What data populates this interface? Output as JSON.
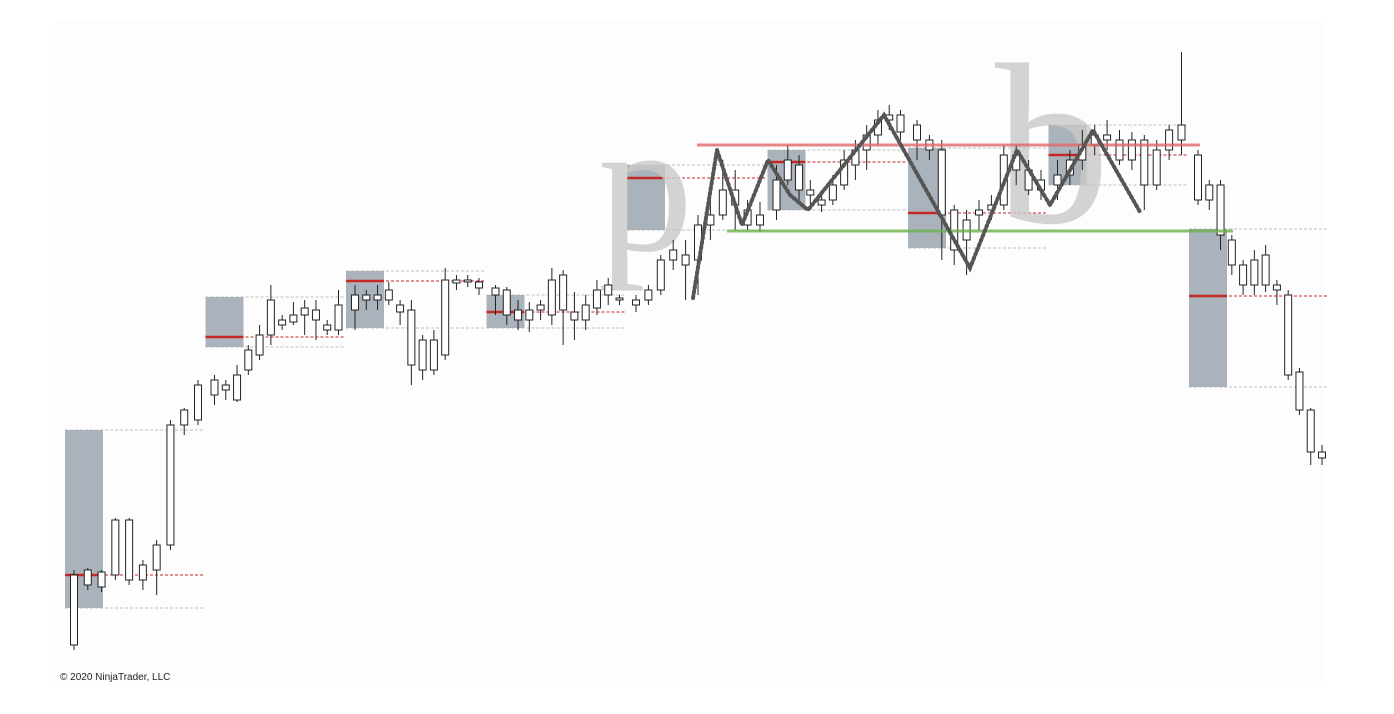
{
  "chart_data": {
    "type": "candlestick",
    "ylim": [
      0,
      640
    ],
    "sessions": [
      {
        "candles": [
          [
            105,
            110,
            30,
            35
          ],
          [
            95,
            112,
            90,
            110
          ],
          [
            93,
            110,
            88,
            108
          ],
          [
            105,
            162,
            100,
            160
          ],
          [
            100,
            162,
            95,
            160
          ],
          [
            100,
            120,
            90,
            115
          ],
          [
            110,
            140,
            85,
            135
          ],
          [
            135,
            260,
            130,
            255
          ],
          [
            255,
            272,
            245,
            270
          ],
          [
            260,
            300,
            255,
            295
          ]
        ],
        "poc": 105,
        "vah": 250,
        "val": 72
      },
      {
        "candles": [
          [
            285,
            305,
            275,
            300
          ],
          [
            290,
            300,
            280,
            295
          ],
          [
            280,
            315,
            278,
            305
          ],
          [
            310,
            335,
            305,
            330
          ],
          [
            325,
            355,
            320,
            345
          ],
          [
            345,
            395,
            335,
            380
          ],
          [
            355,
            365,
            350,
            360
          ],
          [
            358,
            378,
            355,
            365
          ],
          [
            365,
            380,
            345,
            372
          ],
          [
            370,
            380,
            340,
            360
          ],
          [
            355,
            360,
            345,
            350
          ],
          [
            350,
            390,
            345,
            375
          ]
        ],
        "poc": 343,
        "vah": 383,
        "val": 333
      },
      {
        "candles": [
          [
            370,
            395,
            350,
            385
          ],
          [
            380,
            390,
            370,
            385
          ],
          [
            385,
            395,
            370,
            380
          ],
          [
            380,
            398,
            375,
            390
          ],
          [
            375,
            380,
            355,
            368
          ],
          [
            370,
            380,
            295,
            315
          ],
          [
            340,
            345,
            300,
            310
          ],
          [
            310,
            350,
            305,
            340
          ],
          [
            325,
            412,
            320,
            400
          ],
          [
            400,
            405,
            390,
            397
          ],
          [
            398,
            405,
            393,
            400
          ],
          [
            398,
            402,
            385,
            392
          ]
        ],
        "poc": 399,
        "vah": 409,
        "val": 352
      },
      {
        "candles": [
          [
            392,
            395,
            365,
            385
          ],
          [
            390,
            393,
            355,
            365
          ],
          [
            370,
            380,
            350,
            360
          ],
          [
            360,
            378,
            348,
            370
          ],
          [
            370,
            380,
            360,
            375
          ],
          [
            365,
            412,
            355,
            400
          ],
          [
            405,
            410,
            335,
            370
          ],
          [
            368,
            388,
            340,
            360
          ],
          [
            360,
            385,
            350,
            375
          ],
          [
            372,
            400,
            365,
            390
          ],
          [
            395,
            402,
            375,
            385
          ],
          [
            380,
            385,
            375,
            382
          ]
        ],
        "poc": 368,
        "vah": 385,
        "val": 352
      },
      {
        "candles": [
          [
            375,
            385,
            368,
            380
          ],
          [
            380,
            395,
            375,
            390
          ],
          [
            390,
            425,
            385,
            420
          ],
          [
            420,
            440,
            410,
            430
          ],
          [
            425,
            440,
            380,
            415
          ],
          [
            420,
            465,
            385,
            455
          ],
          [
            455,
            480,
            440,
            465
          ],
          [
            465,
            520,
            460,
            490
          ],
          [
            490,
            510,
            450,
            475
          ],
          [
            470,
            480,
            450,
            455
          ],
          [
            455,
            478,
            448,
            465
          ]
        ],
        "poc": 502,
        "vah": 515,
        "val": 450
      },
      {
        "candles": [
          [
            470,
            515,
            460,
            500
          ],
          [
            500,
            535,
            495,
            520
          ],
          [
            515,
            525,
            480,
            490
          ],
          [
            490,
            500,
            470,
            485
          ],
          [
            480,
            490,
            468,
            475
          ],
          [
            480,
            505,
            475,
            495
          ],
          [
            495,
            530,
            490,
            520
          ],
          [
            515,
            540,
            500,
            530
          ],
          [
            530,
            555,
            510,
            545
          ],
          [
            545,
            570,
            535,
            560
          ],
          [
            560,
            575,
            550,
            565
          ],
          [
            565,
            570,
            540,
            548
          ]
        ],
        "poc": 518,
        "vah": 530,
        "val": 470
      },
      {
        "candles": [
          [
            555,
            560,
            520,
            540
          ],
          [
            540,
            545,
            520,
            530
          ],
          [
            530,
            540,
            420,
            465
          ],
          [
            470,
            475,
            415,
            430
          ],
          [
            440,
            470,
            405,
            460
          ],
          [
            465,
            480,
            450,
            470
          ],
          [
            470,
            485,
            460,
            475
          ],
          [
            475,
            535,
            470,
            525
          ],
          [
            525,
            535,
            495,
            510
          ],
          [
            510,
            520,
            485,
            490
          ],
          [
            490,
            510,
            480,
            500
          ]
        ],
        "poc": 467,
        "vah": 532,
        "val": 432
      },
      {
        "candles": [
          [
            495,
            520,
            480,
            505
          ],
          [
            505,
            530,
            495,
            520
          ],
          [
            520,
            550,
            510,
            535
          ],
          [
            535,
            555,
            525,
            545
          ],
          [
            545,
            560,
            530,
            540
          ],
          [
            540,
            550,
            515,
            520
          ],
          [
            520,
            548,
            510,
            540
          ],
          [
            540,
            545,
            470,
            495
          ],
          [
            495,
            540,
            490,
            530
          ],
          [
            530,
            555,
            520,
            550
          ],
          [
            540,
            628,
            525,
            555
          ]
        ],
        "poc": 525,
        "vah": 555,
        "val": 495
      },
      {
        "candles": [
          [
            525,
            530,
            475,
            480
          ],
          [
            480,
            500,
            470,
            495
          ],
          [
            495,
            500,
            430,
            445
          ],
          [
            440,
            445,
            405,
            415
          ],
          [
            415,
            420,
            385,
            395
          ],
          [
            395,
            430,
            385,
            420
          ],
          [
            425,
            435,
            388,
            395
          ],
          [
            395,
            400,
            375,
            390
          ],
          [
            385,
            390,
            300,
            305
          ],
          [
            308,
            312,
            265,
            270
          ],
          [
            270,
            272,
            215,
            228
          ],
          [
            228,
            235,
            215,
            222
          ]
        ],
        "poc": 384,
        "vah": 451,
        "val": 293
      }
    ],
    "levels": [
      {
        "value": 535,
        "color": "#e06666"
      },
      {
        "value": 449,
        "color": "#6ab04c"
      }
    ],
    "pattern_labels": [
      "p",
      "b"
    ]
  },
  "footer": "© 2020 NinjaTrader, LLC"
}
